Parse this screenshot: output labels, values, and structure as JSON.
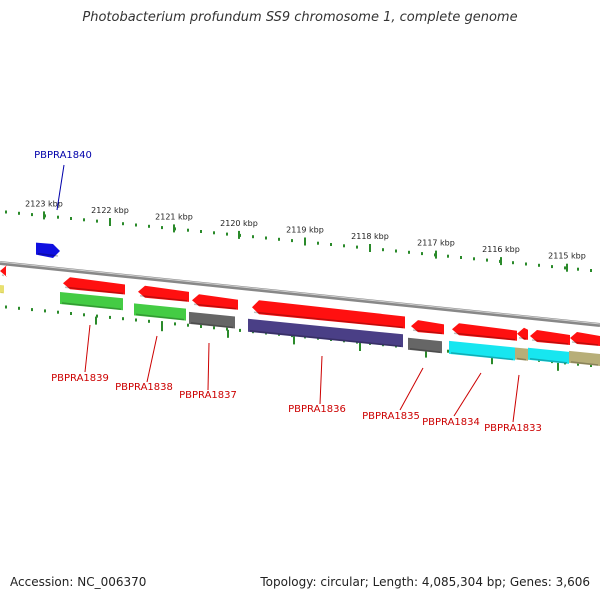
{
  "title": "Photobacterium profundum SS9 chromosome 1, complete genome",
  "footer": {
    "accession": "Accession: NC_006370",
    "summary": "Topology: circular; Length: 4,085,304 bp; Genes: 3,606"
  },
  "colors": {
    "backbone": "#888888",
    "tick": "#2a8a2a",
    "red": "#ff1010",
    "green": "#44cc44",
    "gray": "#666666",
    "purple": "#4a3f86",
    "cyan": "#17e6f0",
    "khaki": "#b7ae78",
    "blue": "#1010e0",
    "yellow": "#e8e070",
    "label_red": "#cc0000",
    "label_blue": "#0000aa"
  },
  "axis": {
    "ticks": [
      {
        "label": "2123 kbp",
        "kbp": 2123
      },
      {
        "label": "2122 kbp",
        "kbp": 2122
      },
      {
        "label": "2121 kbp",
        "kbp": 2121
      },
      {
        "label": "2120 kbp",
        "kbp": 2120
      },
      {
        "label": "2119 kbp",
        "kbp": 2119
      },
      {
        "label": "2118 kbp",
        "kbp": 2118
      },
      {
        "label": "2117 kbp",
        "kbp": 2117
      },
      {
        "label": "2116 kbp",
        "kbp": 2116
      },
      {
        "label": "2115 kbp",
        "kbp": 2115
      }
    ]
  },
  "gene_labels": [
    {
      "text": "PBPRA1840",
      "color": "label_blue"
    },
    {
      "text": "PBPRA1839",
      "color": "label_red"
    },
    {
      "text": "PBPRA1838",
      "color": "label_red"
    },
    {
      "text": "PBPRA1837",
      "color": "label_red"
    },
    {
      "text": "PBPRA1836",
      "color": "label_red"
    },
    {
      "text": "PBPRA1835",
      "color": "label_red"
    },
    {
      "text": "PBPRA1834",
      "color": "label_red"
    },
    {
      "text": "PBPRA1833",
      "color": "label_red"
    }
  ]
}
